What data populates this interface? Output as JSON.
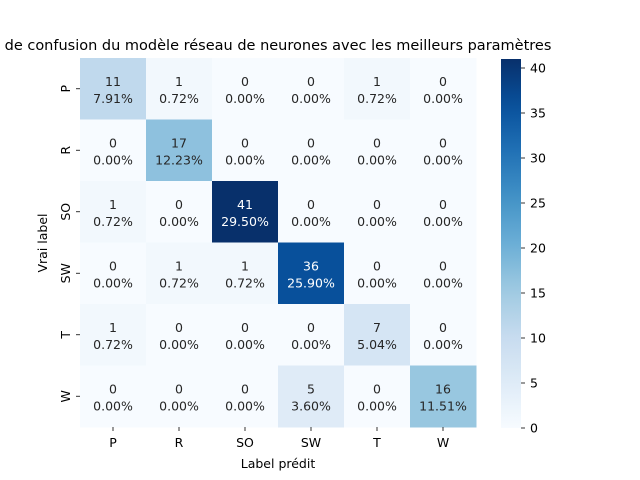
{
  "chart_data": {
    "type": "heatmap",
    "title": "de confusion du modèle réseau de neurones avec les meilleurs paramètres",
    "xlabel": "Label prédit",
    "ylabel": "Vrai label",
    "x_categories": [
      "P",
      "R",
      "SO",
      "SW",
      "T",
      "W"
    ],
    "y_categories": [
      "P",
      "R",
      "SO",
      "SW",
      "T",
      "W"
    ],
    "counts": [
      [
        11,
        1,
        0,
        0,
        1,
        0
      ],
      [
        0,
        17,
        0,
        0,
        0,
        0
      ],
      [
        1,
        0,
        41,
        0,
        0,
        0
      ],
      [
        0,
        1,
        1,
        36,
        0,
        0
      ],
      [
        1,
        0,
        0,
        0,
        7,
        0
      ],
      [
        0,
        0,
        0,
        5,
        0,
        16
      ]
    ],
    "percent_labels": [
      [
        "7.91%",
        "0.72%",
        "0.00%",
        "0.00%",
        "0.72%",
        "0.00%"
      ],
      [
        "0.00%",
        "12.23%",
        "0.00%",
        "0.00%",
        "0.00%",
        "0.00%"
      ],
      [
        "0.72%",
        "0.00%",
        "29.50%",
        "0.00%",
        "0.00%",
        "0.00%"
      ],
      [
        "0.00%",
        "0.72%",
        "0.72%",
        "25.90%",
        "0.00%",
        "0.00%"
      ],
      [
        "0.72%",
        "0.00%",
        "0.00%",
        "0.00%",
        "5.04%",
        "0.00%"
      ],
      [
        "0.00%",
        "0.00%",
        "0.00%",
        "3.60%",
        "0.00%",
        "11.51%"
      ]
    ],
    "colorbar": {
      "colormap": "Blues",
      "range": [
        0,
        41
      ],
      "ticks": [
        0,
        5,
        10,
        15,
        20,
        25,
        30,
        35,
        40
      ]
    }
  }
}
